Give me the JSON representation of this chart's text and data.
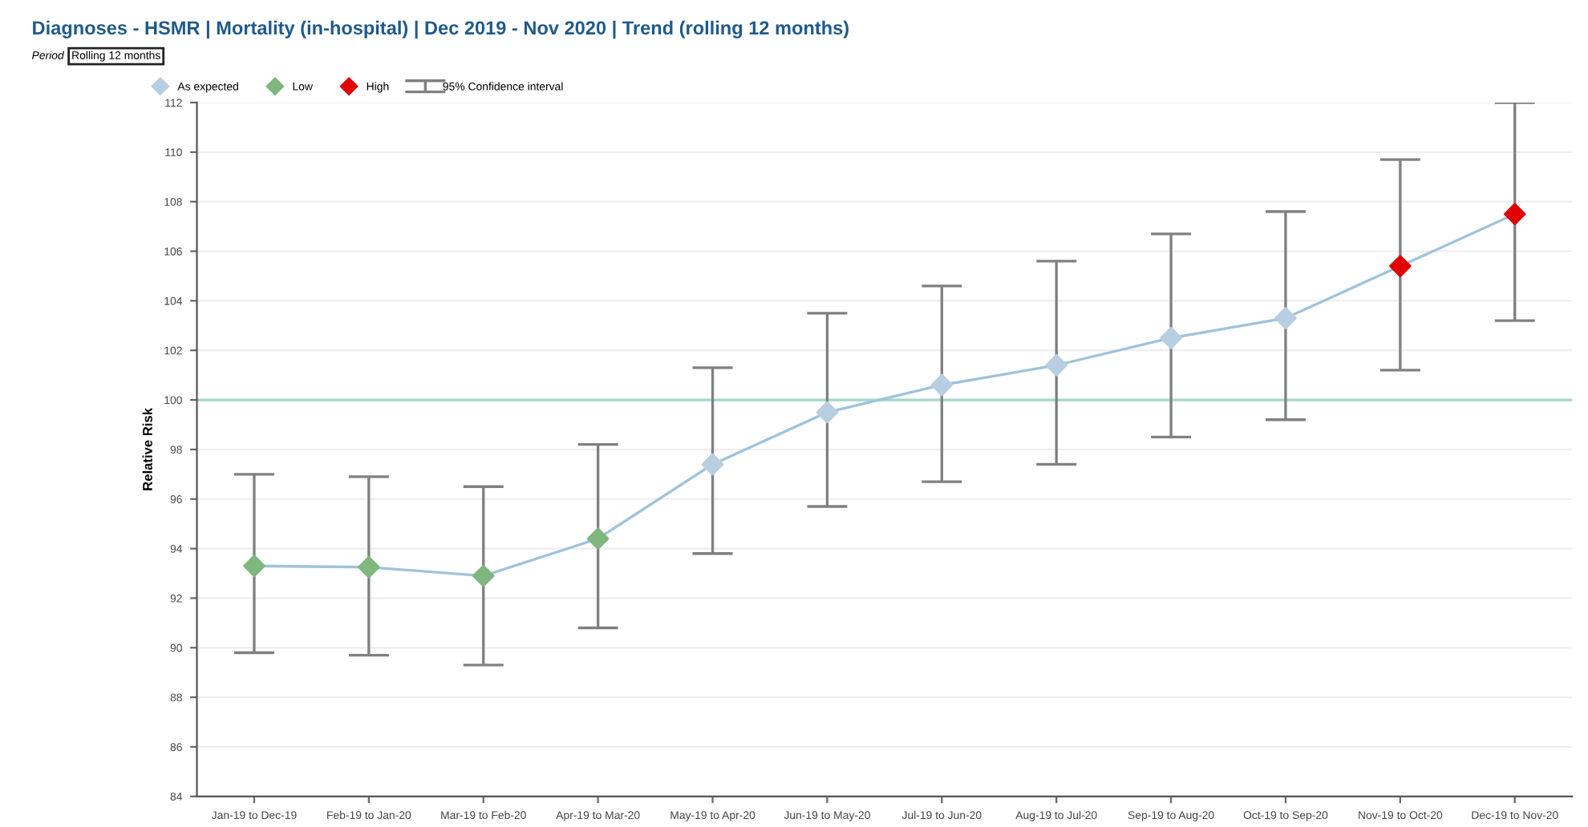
{
  "chart_data": {
    "type": "line",
    "title": "Diagnoses - HSMR | Mortality (in-hospital) | Dec 2019 - Nov 2020 | Trend (rolling 12 months)",
    "ylabel": "Relative Risk",
    "annotations": [
      "Period",
      "Rolling 12 months",
      "95% Confidence interval"
    ],
    "categories": [
      "Jan-19 to Dec-19",
      "Feb-19 to Jan-20",
      "Mar-19 to Feb-20",
      "Apr-19 to Mar-20",
      "May-19 to Apr-20",
      "Jun-19 to May-20",
      "Jul-19 to Jun-20",
      "Aug-19 to Jul-20",
      "Sep-19 to Aug-20",
      "Oct-19 to Sep-20",
      "Nov-19 to Oct-20",
      "Dec-19 to Nov-20"
    ],
    "series": [
      {
        "color": "#9ec3dc",
        "marker": "none",
        "values": [
          93.3,
          93.25,
          92.9,
          94.4,
          97.4,
          99.5,
          100.6,
          101.4,
          102.5,
          103.3,
          105.4,
          107.5
        ],
        "errors": [
          [
            89.8,
            97.0
          ],
          [
            89.7,
            96.9
          ],
          [
            89.3,
            96.5
          ],
          [
            90.8,
            98.2
          ],
          [
            93.8,
            101.3
          ],
          [
            95.7,
            103.5
          ],
          [
            96.7,
            104.6
          ],
          [
            97.4,
            105.6
          ],
          [
            98.5,
            106.7
          ],
          [
            99.2,
            107.6
          ],
          [
            101.2,
            109.7
          ],
          [
            103.2,
            112.0
          ]
        ]
      },
      {
        "type": "scatter",
        "name": "As expected",
        "color": "#b7cfe0",
        "marker": "diamond",
        "values": [
          null,
          null,
          null,
          null,
          97.4,
          99.5,
          100.6,
          101.4,
          102.5,
          103.3,
          null,
          null
        ]
      },
      {
        "type": "scatter",
        "name": "Low",
        "color": "#7fb77e",
        "marker": "diamond",
        "values": [
          93.3,
          93.25,
          92.9,
          94.4,
          null,
          null,
          null,
          null,
          null,
          null,
          null,
          null
        ]
      },
      {
        "type": "scatter",
        "name": "High",
        "color": "#e00000",
        "marker": "diamond",
        "values": [
          null,
          null,
          null,
          null,
          null,
          null,
          null,
          null,
          null,
          null,
          105.4,
          107.5
        ]
      }
    ],
    "ref_lines": [
      {
        "axis": "y",
        "value": 100,
        "color": "#a3d6cc"
      }
    ],
    "ylim": [
      84,
      112
    ],
    "yticks": [
      84,
      86,
      88,
      90,
      92,
      94,
      96,
      98,
      100,
      102,
      104,
      106,
      108,
      110,
      112
    ],
    "grid": "y",
    "legend": "top left"
  }
}
